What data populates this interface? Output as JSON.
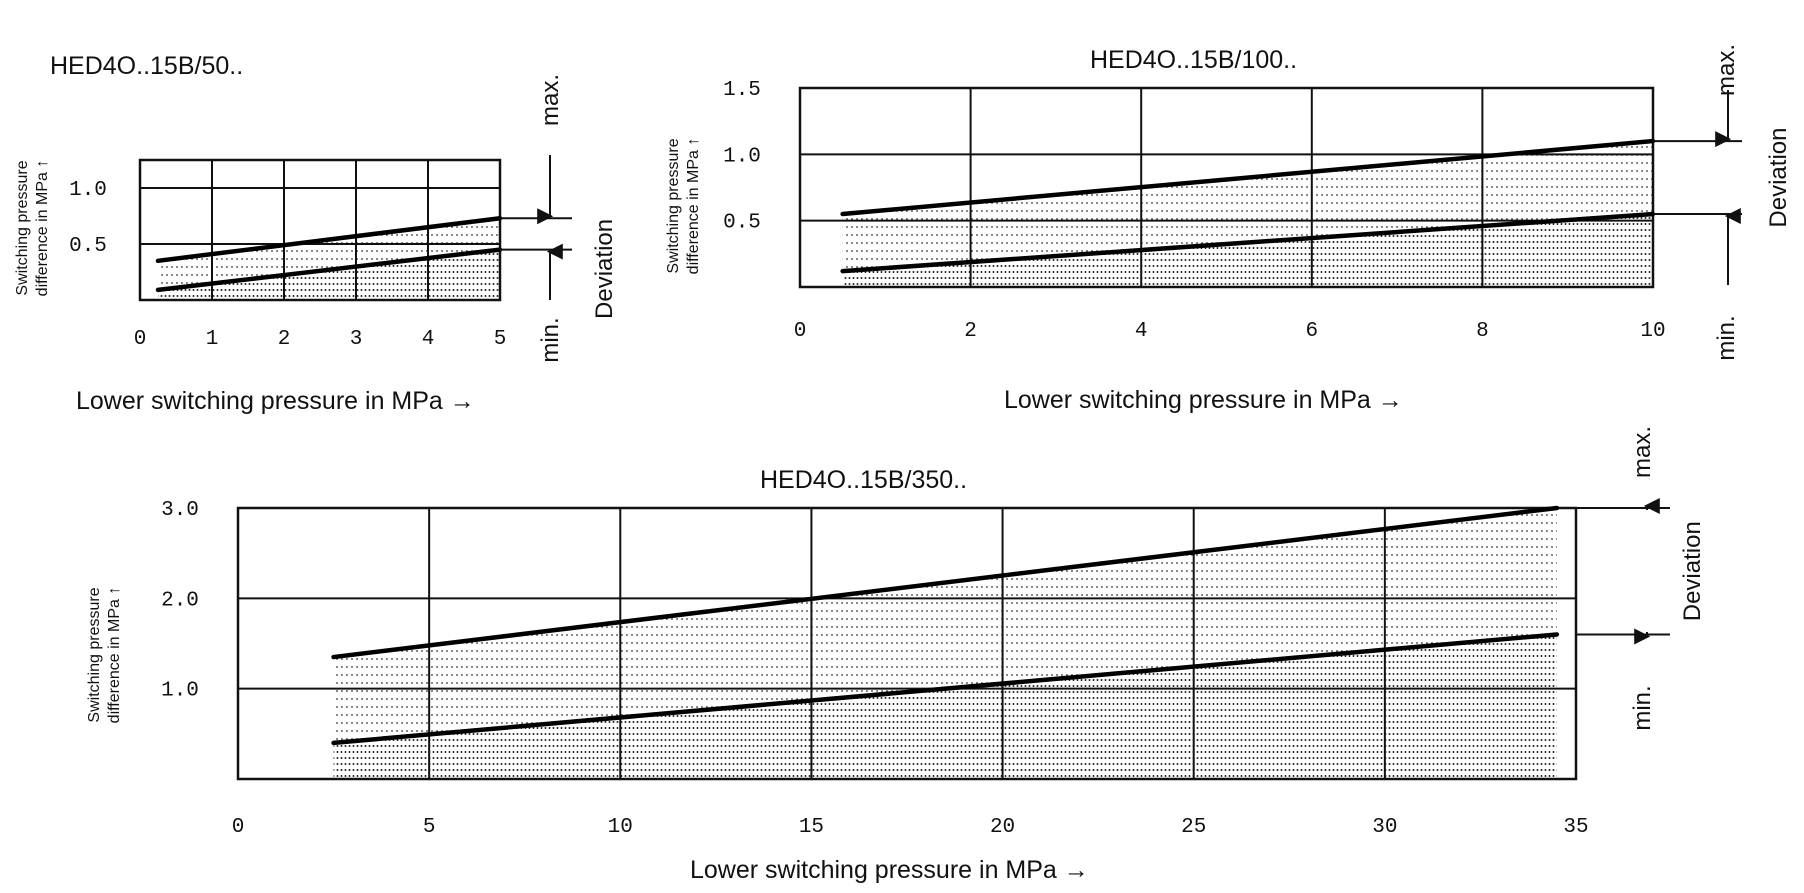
{
  "chart_data": [
    {
      "type": "area",
      "title": "HED4O..15B/50..",
      "xlabel": "Lower switching pressure in MPa →",
      "ylabel_line1": "Switching pressure",
      "ylabel_line2": "difference in MPa ↑",
      "xlim": [
        0,
        5
      ],
      "ylim": [
        0,
        1.25
      ],
      "x_ticks": [
        0,
        1,
        2,
        3,
        4,
        5
      ],
      "y_ticks": [
        0.5,
        1.0
      ],
      "x_tick_labels": [
        "0",
        "1",
        "2",
        "3",
        "4",
        "5"
      ],
      "y_tick_labels": [
        "0.5",
        "1.0"
      ],
      "grid": true,
      "series": [
        {
          "name": "max.",
          "x": [
            0.25,
            5
          ],
          "values": [
            0.35,
            0.73
          ]
        },
        {
          "name": "min.",
          "x": [
            0.25,
            5
          ],
          "values": [
            0.09,
            0.45
          ]
        }
      ],
      "band_label": "Deviation"
    },
    {
      "type": "area",
      "title": "HED4O..15B/100..",
      "xlabel": "Lower switching pressure in MPa →",
      "ylabel_line1": "Switching pressure",
      "ylabel_line2": "difference in MPa ↑",
      "xlim": [
        0,
        10
      ],
      "ylim": [
        0,
        1.5
      ],
      "x_ticks": [
        0,
        2,
        4,
        6,
        8,
        10
      ],
      "y_ticks": [
        0.5,
        1.0,
        1.5
      ],
      "x_tick_labels": [
        "0",
        "2",
        "4",
        "6",
        "8",
        "10"
      ],
      "y_tick_labels": [
        "0.5",
        "1.0",
        "1.5"
      ],
      "grid": true,
      "series": [
        {
          "name": "max.",
          "x": [
            0.5,
            10
          ],
          "values": [
            0.55,
            1.1
          ]
        },
        {
          "name": "min.",
          "x": [
            0.5,
            10
          ],
          "values": [
            0.12,
            0.55
          ]
        }
      ],
      "band_label": "Deviation"
    },
    {
      "type": "area",
      "title": "HED4O..15B/350..",
      "xlabel": "Lower switching pressure in MPa →",
      "ylabel_line1": "Switching pressure",
      "ylabel_line2": "difference in MPa ↑",
      "xlim": [
        0,
        35
      ],
      "ylim": [
        0,
        3.0
      ],
      "x_ticks": [
        0,
        5,
        10,
        15,
        20,
        25,
        30,
        35
      ],
      "y_ticks": [
        1.0,
        2.0,
        3.0
      ],
      "x_tick_labels": [
        "0",
        "5",
        "10",
        "15",
        "20",
        "25",
        "30",
        "35"
      ],
      "y_tick_labels": [
        "1.0",
        "2.0",
        "3.0"
      ],
      "grid": true,
      "series": [
        {
          "name": "max.",
          "x": [
            2.5,
            34.5
          ],
          "values": [
            1.35,
            3.0
          ]
        },
        {
          "name": "min.",
          "x": [
            2.5,
            34.5
          ],
          "values": [
            0.4,
            1.6
          ]
        }
      ],
      "band_label": "Deviation"
    }
  ]
}
